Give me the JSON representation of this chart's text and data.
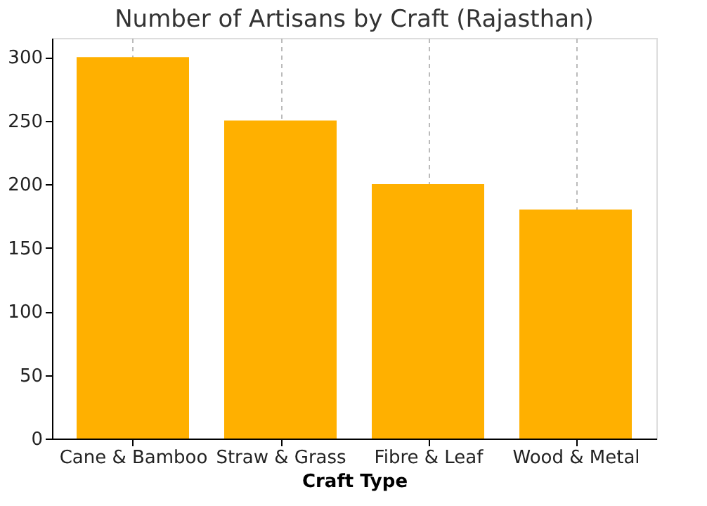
{
  "chart_data": {
    "type": "bar",
    "title": "Number of Artisans by Craft (Rajasthan)",
    "xlabel": "Craft Type",
    "categories": [
      "Cane & Bamboo",
      "Straw & Grass",
      "Fibre & Leaf",
      "Wood & Metal"
    ],
    "values": [
      300,
      250,
      200,
      180
    ],
    "color": "#ffb000",
    "ylim": [
      0,
      315
    ],
    "yticks": [
      0,
      50,
      100,
      150,
      200,
      250,
      300
    ],
    "grid": "x"
  }
}
